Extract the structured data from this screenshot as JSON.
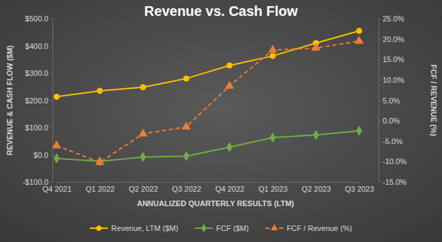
{
  "chart_data": {
    "type": "line",
    "title": "Revenue vs. Cash Flow",
    "x_label": "ANNUALIZED QUARTERLY RESULTS (LTM)",
    "y_label": "REVENUE & CASH FLOW ($M)",
    "y2_label": "FCF / REVENUE (%)",
    "categories": [
      "Q4 2021",
      "Q1 2022",
      "Q2 2022",
      "Q3 2022",
      "Q4 2022",
      "Q1 2023",
      "Q2 2023",
      "Q3 2023"
    ],
    "series": [
      {
        "name": "Revenue, LTM ($M)",
        "color": "#FFC000",
        "marker": "circle",
        "line_style": "solid",
        "values": [
          213,
          235,
          248,
          280,
          328,
          363,
          410,
          455
        ]
      },
      {
        "name": "FCF ($M)",
        "color": "#70AD47",
        "marker": "diamond",
        "line_style": "solid",
        "values": [
          -13,
          -24,
          -8,
          -5,
          28,
          63,
          73,
          88
        ]
      },
      {
        "name": "FCF / Revenue (%)",
        "color": "#ED7D31",
        "marker": "triangle",
        "line_style": "dashed",
        "axis": "y2",
        "values": [
          -6.1,
          -10.2,
          -3.2,
          -1.5,
          8.5,
          17.3,
          17.8,
          19.5
        ]
      }
    ],
    "ylim": [
      -100,
      500
    ],
    "yticks": [
      {
        "value": -100,
        "label": "-$100.0"
      },
      {
        "value": 0,
        "label": "$0.0"
      },
      {
        "value": 100,
        "label": "$100.0"
      },
      {
        "value": 200,
        "label": "$200.0"
      },
      {
        "value": 300,
        "label": "$300.0"
      },
      {
        "value": 400,
        "label": "$400.0"
      },
      {
        "value": 500,
        "label": "$500.0"
      }
    ],
    "y2lim": [
      -15,
      25
    ],
    "y2ticks": [
      {
        "value": -15,
        "label": "-15.0%"
      },
      {
        "value": -10,
        "label": "-10.0%"
      },
      {
        "value": -5,
        "label": "-5.0%"
      },
      {
        "value": 0,
        "label": "0.0%"
      },
      {
        "value": 5,
        "label": "5.0%"
      },
      {
        "value": 10,
        "label": "10.0%"
      },
      {
        "value": 15,
        "label": "15.0%"
      },
      {
        "value": 20,
        "label": "20.0%"
      },
      {
        "value": 25,
        "label": "25.0%"
      }
    ],
    "grid": false,
    "legend": "bottom"
  }
}
